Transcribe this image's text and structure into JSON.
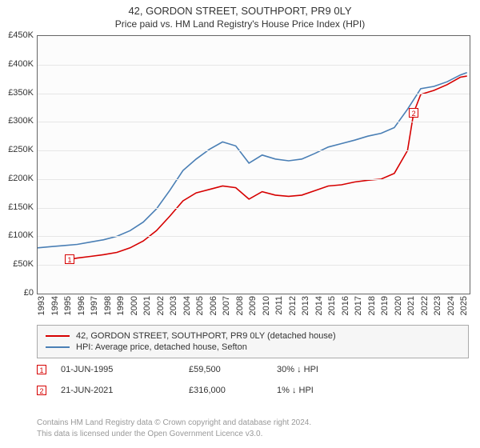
{
  "title": "42, GORDON STREET, SOUTHPORT, PR9 0LY",
  "subtitle": "Price paid vs. HM Land Registry's House Price Index (HPI)",
  "chart": {
    "type": "line",
    "background_color": "#fcfcfc",
    "border_color": "#666666",
    "grid_color": "#e6e6e6",
    "x_years": [
      1993,
      1994,
      1995,
      1996,
      1997,
      1998,
      1999,
      2000,
      2001,
      2002,
      2003,
      2004,
      2005,
      2006,
      2007,
      2008,
      2009,
      2010,
      2011,
      2012,
      2013,
      2014,
      2015,
      2016,
      2017,
      2018,
      2019,
      2020,
      2021,
      2022,
      2023,
      2024,
      2025
    ],
    "x_min": 1993,
    "x_max": 2025.7,
    "y_min": 0,
    "y_max": 450000,
    "y_tick_step": 50000,
    "y_tick_labels": [
      "£0",
      "£50K",
      "£100K",
      "£150K",
      "£200K",
      "£250K",
      "£300K",
      "£350K",
      "£400K",
      "£450K"
    ],
    "label_fontsize": 11,
    "series": [
      {
        "name": "42, GORDON STREET, SOUTHPORT, PR9 0LY (detached house)",
        "color": "#d60000",
        "line_width": 1.6,
        "points": [
          [
            1995.42,
            59500
          ],
          [
            1996,
            62000
          ],
          [
            1997,
            65000
          ],
          [
            1998,
            68000
          ],
          [
            1999,
            72000
          ],
          [
            2000,
            80000
          ],
          [
            2001,
            92000
          ],
          [
            2002,
            110000
          ],
          [
            2003,
            135000
          ],
          [
            2004,
            162000
          ],
          [
            2005,
            176000
          ],
          [
            2006,
            182000
          ],
          [
            2007,
            188000
          ],
          [
            2008,
            185000
          ],
          [
            2009,
            165000
          ],
          [
            2010,
            178000
          ],
          [
            2011,
            172000
          ],
          [
            2012,
            170000
          ],
          [
            2013,
            172000
          ],
          [
            2014,
            180000
          ],
          [
            2015,
            188000
          ],
          [
            2016,
            190000
          ],
          [
            2017,
            195000
          ],
          [
            2018,
            198000
          ],
          [
            2019,
            200000
          ],
          [
            2020,
            210000
          ],
          [
            2021,
            250000
          ],
          [
            2021.47,
            316000
          ],
          [
            2022,
            348000
          ],
          [
            2023,
            355000
          ],
          [
            2024,
            365000
          ],
          [
            2025,
            378000
          ],
          [
            2025.5,
            380000
          ]
        ]
      },
      {
        "name": "HPI: Average price, detached house, Sefton",
        "color": "#4a7fb5",
        "line_width": 1.6,
        "points": [
          [
            1993,
            80000
          ],
          [
            1994,
            82000
          ],
          [
            1995,
            84000
          ],
          [
            1996,
            86000
          ],
          [
            1997,
            90000
          ],
          [
            1998,
            94000
          ],
          [
            1999,
            100000
          ],
          [
            2000,
            110000
          ],
          [
            2001,
            125000
          ],
          [
            2002,
            148000
          ],
          [
            2003,
            180000
          ],
          [
            2004,
            215000
          ],
          [
            2005,
            235000
          ],
          [
            2006,
            252000
          ],
          [
            2007,
            265000
          ],
          [
            2008,
            258000
          ],
          [
            2009,
            228000
          ],
          [
            2010,
            242000
          ],
          [
            2011,
            235000
          ],
          [
            2012,
            232000
          ],
          [
            2013,
            235000
          ],
          [
            2014,
            245000
          ],
          [
            2015,
            256000
          ],
          [
            2016,
            262000
          ],
          [
            2017,
            268000
          ],
          [
            2018,
            275000
          ],
          [
            2019,
            280000
          ],
          [
            2020,
            290000
          ],
          [
            2021,
            322000
          ],
          [
            2022,
            358000
          ],
          [
            2023,
            362000
          ],
          [
            2024,
            370000
          ],
          [
            2025,
            382000
          ],
          [
            2025.5,
            386000
          ]
        ]
      }
    ],
    "markers": [
      {
        "id": "1",
        "color": "#d60000",
        "x": 1995.42,
        "y": 59500
      },
      {
        "id": "2",
        "color": "#d60000",
        "x": 2021.47,
        "y": 316000
      }
    ]
  },
  "legend": {
    "items": [
      {
        "color": "#d60000",
        "label": "42, GORDON STREET, SOUTHPORT, PR9 0LY (detached house)"
      },
      {
        "color": "#4a7fb5",
        "label": "HPI: Average price, detached house, Sefton"
      }
    ]
  },
  "sales": [
    {
      "marker": "1",
      "color": "#d60000",
      "date": "01-JUN-1995",
      "price": "£59,500",
      "diff": "30% ↓ HPI"
    },
    {
      "marker": "2",
      "color": "#d60000",
      "date": "21-JUN-2021",
      "price": "£316,000",
      "diff": "1% ↓ HPI"
    }
  ],
  "footer_line1": "Contains HM Land Registry data © Crown copyright and database right 2024.",
  "footer_line2": "This data is licensed under the Open Government Licence v3.0."
}
